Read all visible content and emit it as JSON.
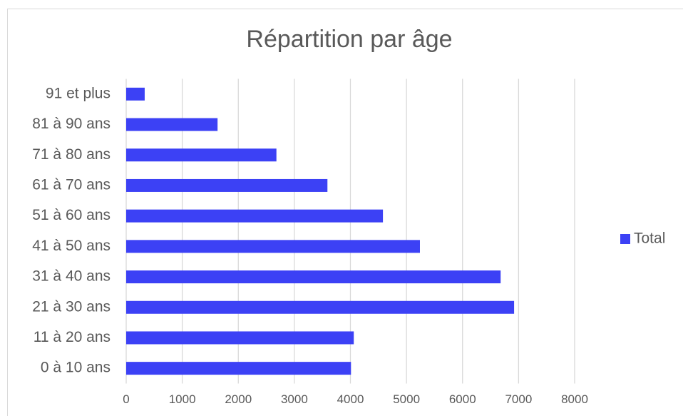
{
  "chart_data": {
    "type": "bar",
    "orientation": "horizontal",
    "title": "Répartition par âge",
    "categories": [
      "0 à 10 ans",
      "11 à 20 ans",
      "21 à 30 ans",
      "31 à 40 ans",
      "41 à 50 ans",
      "51 à 60 ans",
      "61 à 70 ans",
      "71 à 80 ans",
      "81 à 90 ans",
      "91 et plus"
    ],
    "series": [
      {
        "name": "Total",
        "color": "#3c41f5",
        "values": [
          4010,
          4060,
          6920,
          6680,
          5240,
          4580,
          3590,
          2680,
          1630,
          330
        ]
      }
    ],
    "xlim": [
      0,
      8000
    ],
    "xticks": [
      0,
      1000,
      2000,
      3000,
      4000,
      5000,
      6000,
      7000,
      8000
    ],
    "grid": true,
    "legend": "right"
  }
}
